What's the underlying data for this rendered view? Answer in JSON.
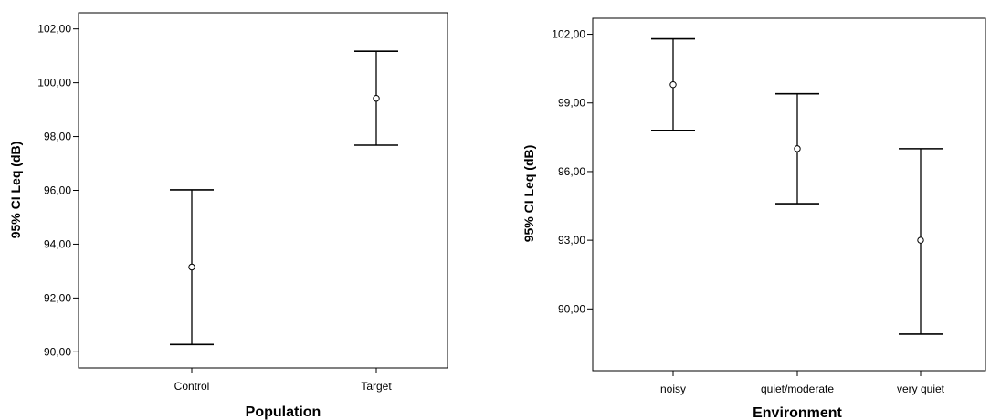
{
  "chart_data": [
    {
      "type": "errorbar",
      "xlabel": "Population",
      "ylabel": "95% CI Leq (dB)",
      "ylim": [
        89.4,
        102.6
      ],
      "yticks": [
        90,
        92,
        94,
        96,
        98,
        100,
        102
      ],
      "ytick_labels": [
        "90,00",
        "92,00",
        "94,00",
        "96,00",
        "98,00",
        "100,00",
        "102,00"
      ],
      "categories": [
        "Control",
        "Target"
      ],
      "mean": [
        93.15,
        99.42
      ],
      "lower": [
        90.27,
        97.68
      ],
      "upper": [
        96.02,
        101.17
      ]
    },
    {
      "type": "errorbar",
      "xlabel": "Environment",
      "ylabel": "95% CI Leq (dB)",
      "ylim": [
        87.3,
        102.7
      ],
      "yticks": [
        90,
        93,
        96,
        99,
        102
      ],
      "ytick_labels": [
        "90,00",
        "93,00",
        "96,00",
        "99,00",
        "102,00"
      ],
      "categories": [
        "noisy",
        "quiet/moderate",
        "very quiet"
      ],
      "mean": [
        99.8,
        97.0,
        93.0
      ],
      "lower": [
        97.8,
        94.6,
        88.9
      ],
      "upper": [
        101.8,
        99.4,
        97.0
      ]
    }
  ]
}
